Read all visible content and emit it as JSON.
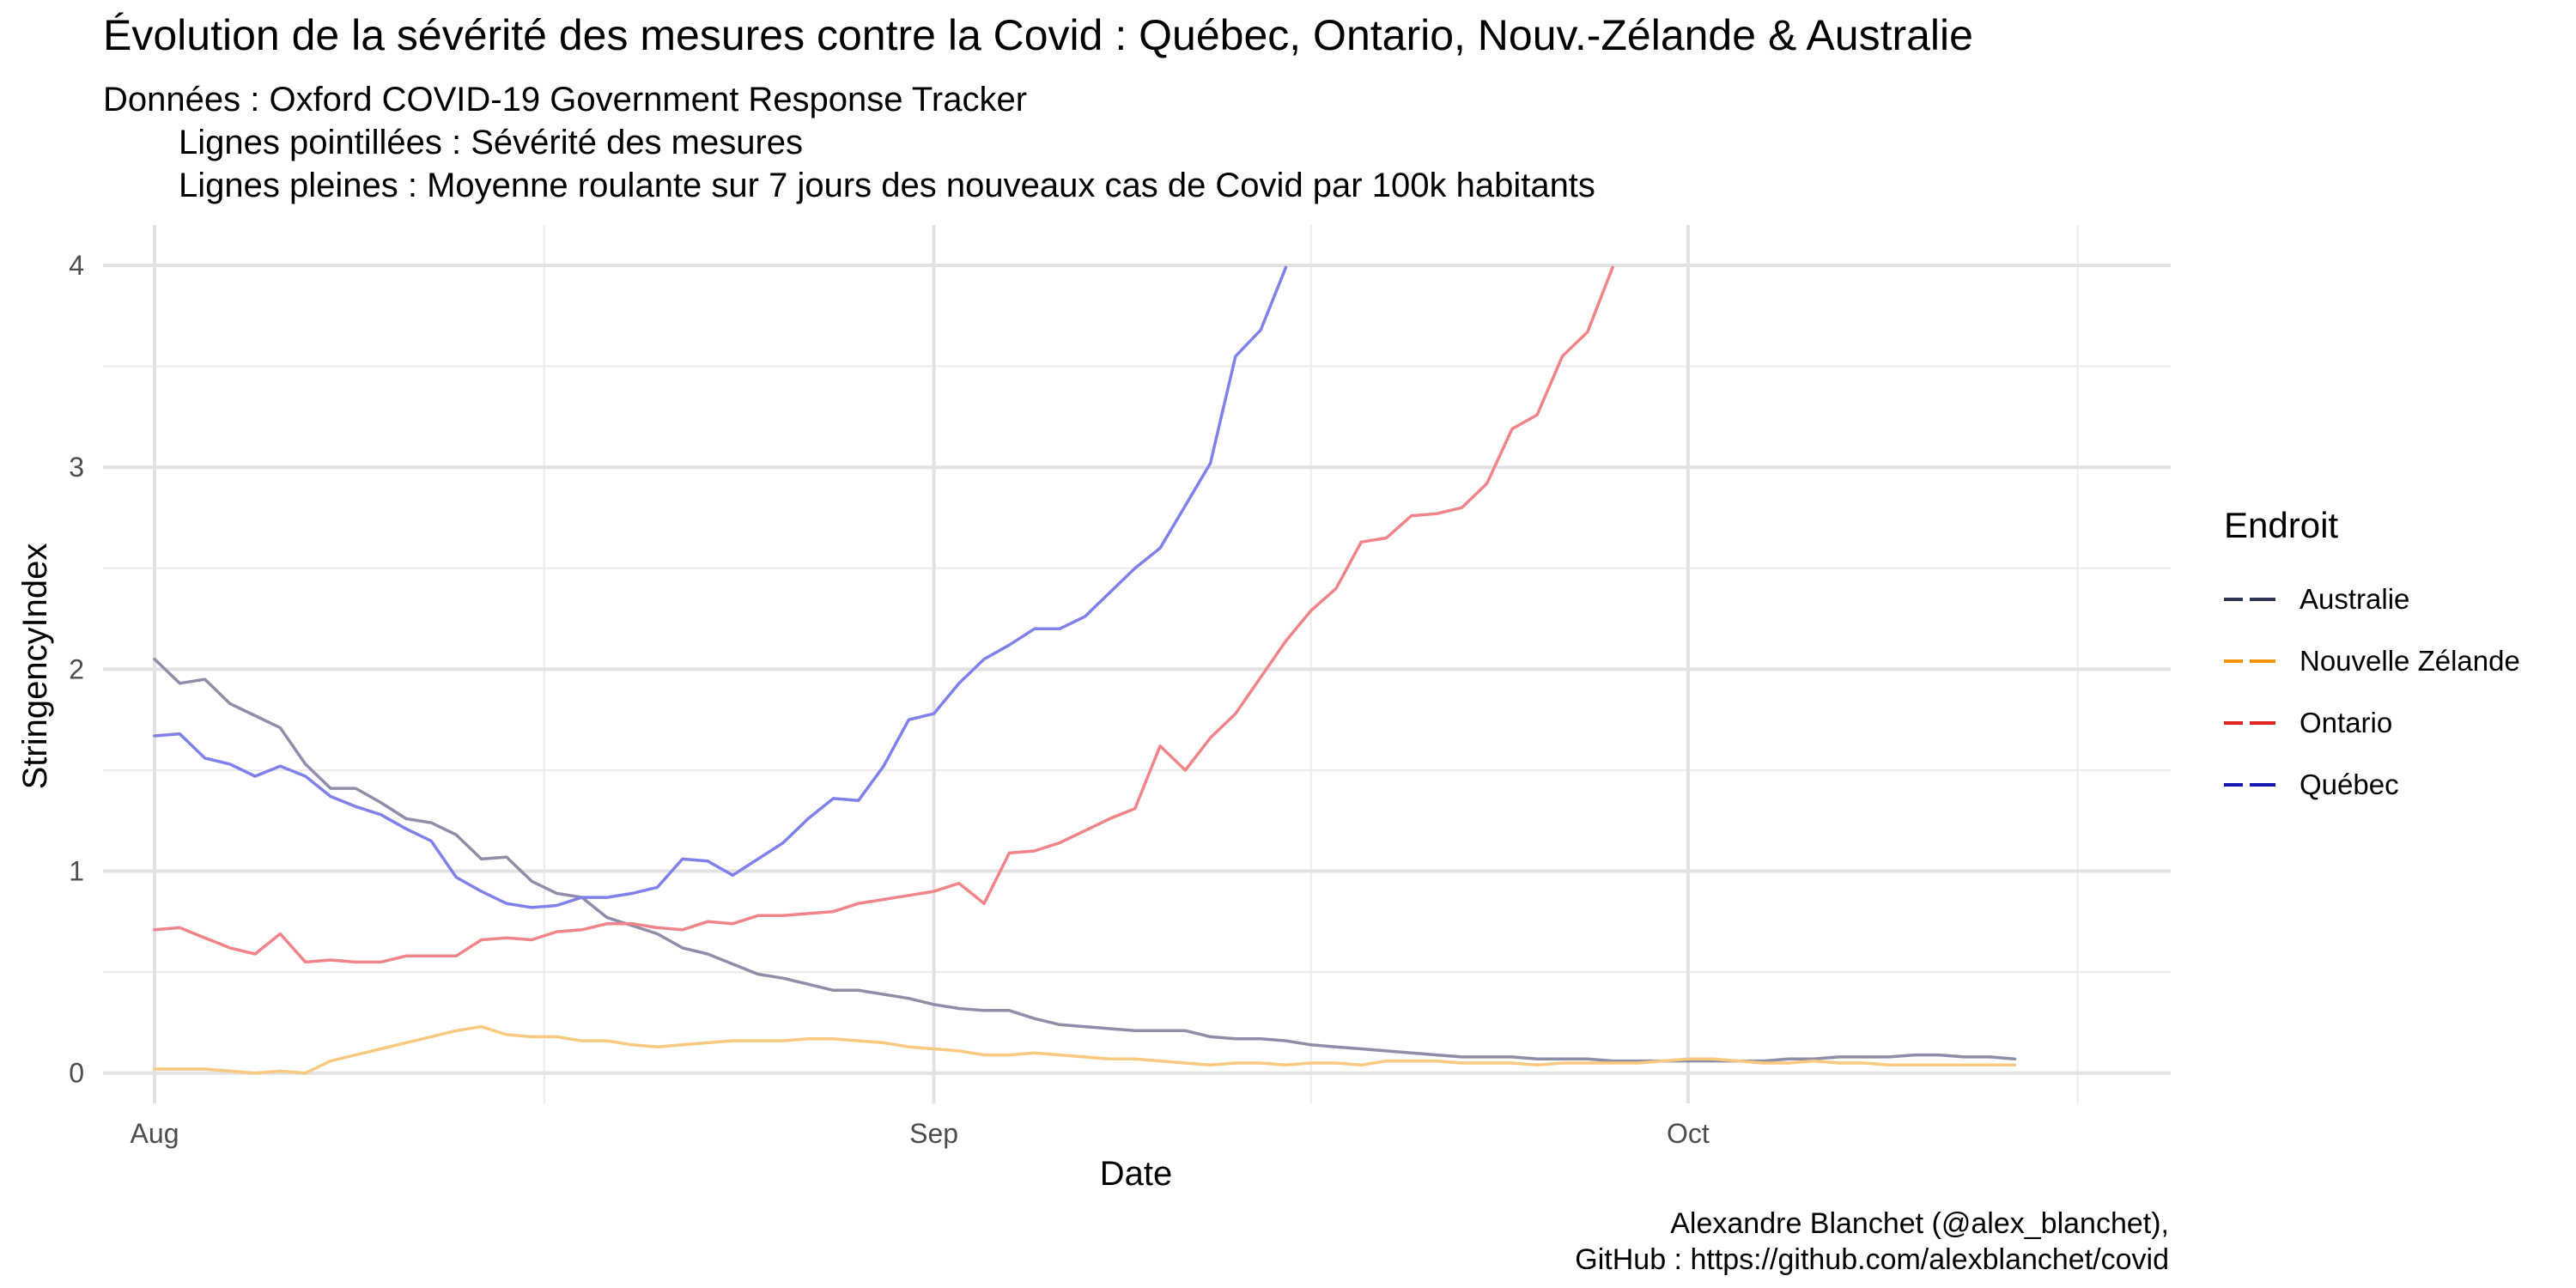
{
  "chart_data": {
    "type": "line",
    "title": "Évolution de la sévérité des mesures contre la Covid : Québec, Ontario, Nouv.-Zélande & Australie",
    "subtitle_lines": [
      "Données : Oxford COVID-19 Government Response Tracker",
      "Lignes pointillées : Sévérité des mesures",
      "Lignes pleines : Moyenne roulante sur 7 jours des nouveaux cas de Covid par 100k habitants"
    ],
    "xlabel": "Date",
    "ylabel": "StringencyIndex",
    "ylim": [
      -0.15,
      4.2
    ],
    "yticks": [
      0,
      1,
      2,
      3,
      4
    ],
    "x_start": "2020-08-01",
    "xlim_days": [
      -2.05,
      80.2
    ],
    "xticks": [
      {
        "label": "Aug",
        "day": 0
      },
      {
        "label": "Sep",
        "day": 31
      },
      {
        "label": "Oct",
        "day": 61
      }
    ],
    "minor_x_days": [
      15.5,
      46,
      76.5
    ],
    "grid": true,
    "legend_title": "Endroit",
    "legend_position": "right",
    "series": [
      {
        "name": "Australie",
        "color": "#8e8ea8",
        "legend_color": "#2e3456",
        "x_start_day": 0,
        "values": [
          2.05,
          1.93,
          1.95,
          1.83,
          1.77,
          1.71,
          1.53,
          1.41,
          1.41,
          1.34,
          1.26,
          1.24,
          1.18,
          1.06,
          1.07,
          0.95,
          0.89,
          0.87,
          0.77,
          0.73,
          0.69,
          0.62,
          0.59,
          0.54,
          0.49,
          0.47,
          0.44,
          0.41,
          0.41,
          0.39,
          0.37,
          0.34,
          0.32,
          0.31,
          0.31,
          0.27,
          0.24,
          0.23,
          0.22,
          0.21,
          0.21,
          0.21,
          0.18,
          0.17,
          0.17,
          0.16,
          0.14,
          0.13,
          0.12,
          0.11,
          0.1,
          0.09,
          0.08,
          0.08,
          0.08,
          0.07,
          0.07,
          0.07,
          0.06,
          0.06,
          0.06,
          0.06,
          0.06,
          0.06,
          0.06,
          0.07,
          0.07,
          0.08,
          0.08,
          0.08,
          0.09,
          0.09,
          0.08,
          0.08,
          0.07
        ]
      },
      {
        "name": "Nouvelle Zélande",
        "color": "#f9c97f",
        "legend_color": "#f3930c",
        "x_start_day": 0,
        "values": [
          0.02,
          0.02,
          0.02,
          0.01,
          0.0,
          0.01,
          0.0,
          0.06,
          0.09,
          0.12,
          0.15,
          0.18,
          0.21,
          0.23,
          0.19,
          0.18,
          0.18,
          0.16,
          0.16,
          0.14,
          0.13,
          0.14,
          0.15,
          0.16,
          0.16,
          0.16,
          0.17,
          0.17,
          0.16,
          0.15,
          0.13,
          0.12,
          0.11,
          0.09,
          0.09,
          0.1,
          0.09,
          0.08,
          0.07,
          0.07,
          0.06,
          0.05,
          0.04,
          0.05,
          0.05,
          0.04,
          0.05,
          0.05,
          0.04,
          0.06,
          0.06,
          0.06,
          0.05,
          0.05,
          0.05,
          0.04,
          0.05,
          0.05,
          0.05,
          0.05,
          0.06,
          0.07,
          0.07,
          0.06,
          0.05,
          0.05,
          0.06,
          0.05,
          0.05,
          0.04,
          0.04,
          0.04,
          0.04,
          0.04,
          0.04
        ]
      },
      {
        "name": "Ontario",
        "color": "#f08488",
        "legend_color": "#e0231f",
        "x_start_day": 0,
        "values": [
          0.71,
          0.72,
          0.67,
          0.62,
          0.59,
          0.69,
          0.55,
          0.56,
          0.55,
          0.55,
          0.58,
          0.58,
          0.58,
          0.66,
          0.67,
          0.66,
          0.7,
          0.71,
          0.74,
          0.74,
          0.72,
          0.71,
          0.75,
          0.74,
          0.78,
          0.78,
          0.79,
          0.8,
          0.84,
          0.86,
          0.88,
          0.9,
          0.94,
          0.84,
          1.09,
          1.1,
          1.14,
          1.2,
          1.26,
          1.31,
          1.62,
          1.5,
          1.66,
          1.78,
          1.96,
          2.14,
          2.29,
          2.4,
          2.63,
          2.65,
          2.76,
          2.77,
          2.8,
          2.92,
          3.19,
          3.26,
          3.55,
          3.67,
          3.99
        ]
      },
      {
        "name": "Québec",
        "color": "#8080ea",
        "legend_color": "#1616b0",
        "x_start_day": 0,
        "values": [
          1.67,
          1.68,
          1.56,
          1.53,
          1.47,
          1.52,
          1.47,
          1.37,
          1.32,
          1.28,
          1.21,
          1.15,
          0.97,
          0.9,
          0.84,
          0.82,
          0.83,
          0.87,
          0.87,
          0.89,
          0.92,
          1.06,
          1.05,
          0.98,
          1.06,
          1.14,
          1.26,
          1.36,
          1.35,
          1.52,
          1.75,
          1.78,
          1.93,
          2.05,
          2.12,
          2.2,
          2.2,
          2.26,
          2.38,
          2.5,
          2.6,
          2.81,
          3.02,
          3.55,
          3.68,
          3.99
        ]
      }
    ]
  },
  "caption_lines": [
    "Alexandre Blanchet (@alex_blanchet),",
    "GitHub : https://github.com/alexblanchet/covid"
  ]
}
